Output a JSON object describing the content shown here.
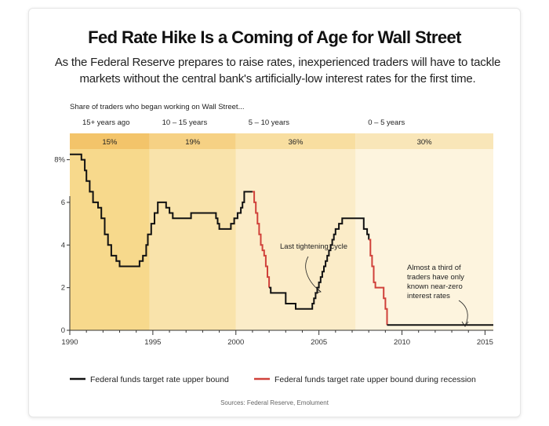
{
  "header": {
    "title": "Fed Rate Hike Is a Coming of Age for Wall Street",
    "subtitle": "As the Federal Reserve prepares to raise rates, inexperienced traders will have to tackle markets without the central bank's artificially-low interest rates for the first time."
  },
  "colors": {
    "normal_line": "#111111",
    "recession_line": "#d0413a",
    "band_dark": "#f3c46a",
    "band_light": "#f9e6b8",
    "shade_base": "#fdf4de"
  },
  "chart_data": {
    "type": "line",
    "title": "Fed Rate Hike Is a Coming of Age for Wall Street",
    "subtitle": "As the Federal Reserve prepares to raise rates, inexperienced traders will have to tackle markets without the central bank's artificially-low interest rates for the first time.",
    "xlabel": "",
    "ylabel": "",
    "xlim": [
      1990,
      2015.5
    ],
    "ylim": [
      0,
      8.5
    ],
    "xticks": [
      1990,
      1995,
      2000,
      2005,
      2010,
      2015
    ],
    "yticks": [
      {
        "value": 0,
        "label": "0"
      },
      {
        "value": 2,
        "label": "2"
      },
      {
        "value": 4,
        "label": "4"
      },
      {
        "value": 6,
        "label": "6"
      },
      {
        "value": 8,
        "label": "8%"
      }
    ],
    "band_header": "Share of traders who began working on Wall Street...",
    "bands": [
      {
        "label": "15+ years ago",
        "share": "15%",
        "start": 1990,
        "end": 1994.8
      },
      {
        "label": "10 – 15 years",
        "share": "19%",
        "start": 1994.8,
        "end": 2000.0
      },
      {
        "label": "5 – 10 years",
        "share": "36%",
        "start": 2000.0,
        "end": 2007.2
      },
      {
        "label": "0 – 5 years",
        "share": "30%",
        "start": 2007.2,
        "end": 2015.5
      }
    ],
    "series": [
      {
        "name": "Federal funds target rate upper bound",
        "points": [
          [
            1990.0,
            8.25
          ],
          [
            1990.5,
            8.25
          ],
          [
            1990.7,
            8.0
          ],
          [
            1990.9,
            7.5
          ],
          [
            1991.0,
            7.0
          ],
          [
            1991.2,
            6.5
          ],
          [
            1991.4,
            6.0
          ],
          [
            1991.7,
            5.75
          ],
          [
            1991.9,
            5.25
          ],
          [
            1992.1,
            4.5
          ],
          [
            1992.3,
            4.0
          ],
          [
            1992.5,
            3.5
          ],
          [
            1992.8,
            3.25
          ],
          [
            1993.0,
            3.0
          ],
          [
            1994.0,
            3.0
          ],
          [
            1994.2,
            3.25
          ],
          [
            1994.4,
            3.5
          ],
          [
            1994.6,
            4.0
          ],
          [
            1994.7,
            4.5
          ],
          [
            1994.9,
            5.0
          ],
          [
            1995.1,
            5.5
          ],
          [
            1995.3,
            6.0
          ],
          [
            1995.6,
            6.0
          ],
          [
            1995.8,
            5.75
          ],
          [
            1996.0,
            5.5
          ],
          [
            1996.2,
            5.25
          ],
          [
            1997.2,
            5.25
          ],
          [
            1997.3,
            5.5
          ],
          [
            1998.7,
            5.5
          ],
          [
            1998.8,
            5.25
          ],
          [
            1998.9,
            5.0
          ],
          [
            1999.0,
            4.75
          ],
          [
            1999.5,
            4.75
          ],
          [
            1999.7,
            5.0
          ],
          [
            1999.9,
            5.25
          ],
          [
            2000.1,
            5.5
          ],
          [
            2000.3,
            5.75
          ],
          [
            2000.4,
            6.0
          ],
          [
            2000.5,
            6.5
          ],
          [
            2001.0,
            6.5
          ]
        ]
      },
      {
        "name": "Federal funds target rate upper bound during recession",
        "points": [
          [
            2001.0,
            6.5
          ],
          [
            2001.1,
            6.0
          ],
          [
            2001.2,
            5.5
          ],
          [
            2001.3,
            5.0
          ],
          [
            2001.4,
            4.5
          ],
          [
            2001.5,
            4.0
          ],
          [
            2001.6,
            3.75
          ],
          [
            2001.7,
            3.5
          ],
          [
            2001.8,
            3.0
          ],
          [
            2001.9,
            2.5
          ],
          [
            2002.0,
            2.0
          ]
        ]
      },
      {
        "name": "Federal funds target rate upper bound",
        "points": [
          [
            2002.0,
            2.0
          ],
          [
            2002.1,
            1.75
          ],
          [
            2002.9,
            1.75
          ],
          [
            2003.0,
            1.25
          ],
          [
            2003.5,
            1.25
          ],
          [
            2003.6,
            1.0
          ],
          [
            2004.5,
            1.0
          ],
          [
            2004.6,
            1.25
          ],
          [
            2004.7,
            1.5
          ],
          [
            2004.8,
            1.75
          ],
          [
            2004.9,
            2.0
          ],
          [
            2005.0,
            2.25
          ],
          [
            2005.1,
            2.5
          ],
          [
            2005.2,
            2.75
          ],
          [
            2005.3,
            3.0
          ],
          [
            2005.4,
            3.25
          ],
          [
            2005.5,
            3.5
          ],
          [
            2005.6,
            3.75
          ],
          [
            2005.7,
            4.0
          ],
          [
            2005.8,
            4.25
          ],
          [
            2005.9,
            4.5
          ],
          [
            2006.0,
            4.75
          ],
          [
            2006.2,
            5.0
          ],
          [
            2006.4,
            5.25
          ],
          [
            2007.6,
            5.25
          ],
          [
            2007.7,
            4.75
          ],
          [
            2007.9,
            4.5
          ],
          [
            2008.0,
            4.25
          ]
        ]
      },
      {
        "name": "Federal funds target rate upper bound during recession",
        "points": [
          [
            2008.0,
            4.25
          ],
          [
            2008.1,
            3.5
          ],
          [
            2008.2,
            3.0
          ],
          [
            2008.3,
            2.25
          ],
          [
            2008.4,
            2.0
          ],
          [
            2008.8,
            2.0
          ],
          [
            2008.9,
            1.5
          ],
          [
            2009.0,
            1.0
          ],
          [
            2009.1,
            0.25
          ]
        ]
      },
      {
        "name": "Federal funds target rate upper bound",
        "points": [
          [
            2009.1,
            0.25
          ],
          [
            2015.5,
            0.25
          ]
        ]
      }
    ],
    "annotations": [
      {
        "text": "Last tightening cycle",
        "x": 2006.0,
        "y": 6.0
      },
      {
        "lines": [
          "Almost a third of",
          "traders have only",
          "known near-zero",
          "interest rates"
        ],
        "x": 2012.0,
        "y": 4.6
      }
    ],
    "legend": [
      {
        "label": "Federal funds target rate upper bound",
        "color": "#111111"
      },
      {
        "label": "Federal funds target rate upper bound during recession",
        "color": "#d0413a"
      }
    ],
    "legend_position": "bottom",
    "grid": false,
    "source": "Sources: Federal Reserve, Emolument"
  }
}
